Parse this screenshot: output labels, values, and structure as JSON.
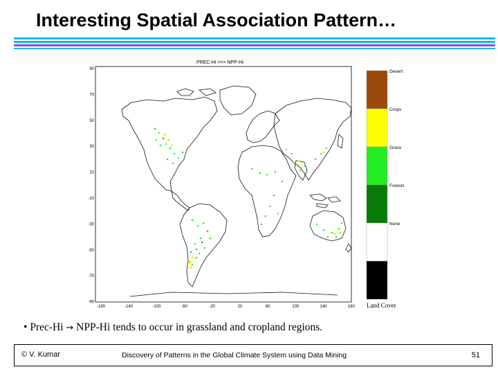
{
  "slide": {
    "title": "Interesting Spatial Association Pattern…",
    "bullet": {
      "marker": "•",
      "prefix": "Prec-Hi",
      "arrow": "→",
      "suffix": "NPP-Hi tends to occur in grassland and cropland regions."
    }
  },
  "figure": {
    "map_title": "PREC-Hi  ==> NPP-Hi",
    "y_ticks": [
      "90",
      "70",
      "50",
      "30",
      "10",
      "-10",
      "-30",
      "-50",
      "-70",
      "-90"
    ],
    "x_ticks": [
      "-180",
      "-140",
      "-100",
      "-60",
      "-20",
      "20",
      "60",
      "100",
      "140",
      "180"
    ],
    "legend_title": "Land Cover",
    "legend": [
      {
        "label": "Desert",
        "color": "#9b4a0c"
      },
      {
        "label": "Crops",
        "color": "#ffff00"
      },
      {
        "label": "Grass",
        "color": "#22ee22"
      },
      {
        "label": "Forests",
        "color": "#087a08"
      },
      {
        "label": "None",
        "color": "#ffffff"
      },
      {
        "label": "",
        "color": "#000000"
      }
    ]
  },
  "footer": {
    "left": "© V. Kumar",
    "center": "Discovery of Patterns in the Global Climate System using Data Mining",
    "right": "51"
  }
}
